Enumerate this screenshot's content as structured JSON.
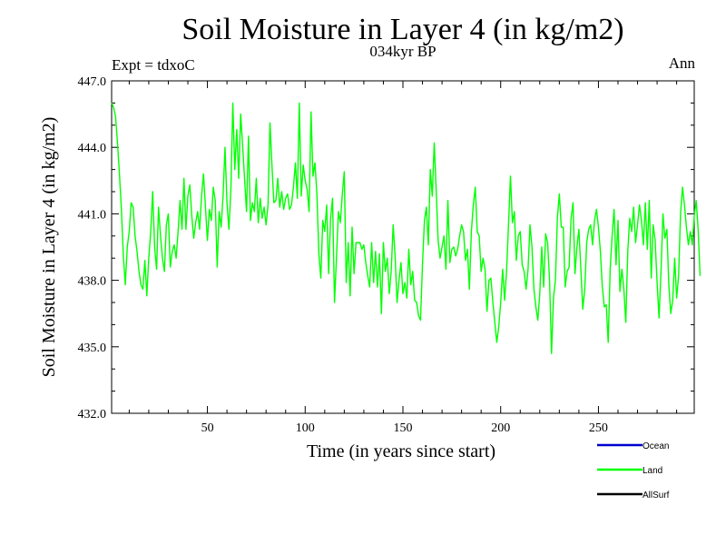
{
  "chart_data": {
    "type": "line",
    "title": "Soil Moisture in Layer 4 (in kg/m2)",
    "subtitle": "034kyr BP",
    "experiment_label": "Expt = tdxoC",
    "season_label": "Ann",
    "xlabel": "Time (in years since start)",
    "ylabel": "Soil Moisture in Layer 4 (in kg/m2)",
    "xlim": [
      1,
      299
    ],
    "ylim": [
      432.0,
      447.0
    ],
    "x_ticks": [
      50,
      100,
      150,
      200,
      250
    ],
    "x_tick_labels": [
      "50",
      "100",
      "150",
      "200",
      "250"
    ],
    "y_ticks": [
      432.0,
      435.0,
      438.0,
      441.0,
      444.0,
      447.0
    ],
    "y_tick_labels": [
      "432.0",
      "435.0",
      "438.0",
      "441.0",
      "444.0",
      "447.0"
    ],
    "legend": [
      {
        "name": "Ocean",
        "color": "#0000cc"
      },
      {
        "name": "Land",
        "color": "#00ff00"
      },
      {
        "name": "AllSurf",
        "color": "#000000"
      }
    ],
    "series": [
      {
        "name": "Land",
        "color": "#00ff00",
        "x_start": 1,
        "x_step": 1,
        "values": [
          446.0,
          445.8,
          445.4,
          444.2,
          442.8,
          441.2,
          439.1,
          437.8,
          439.5,
          440.2,
          441.5,
          441.3,
          440.0,
          439.3,
          438.4,
          437.8,
          437.6,
          438.9,
          437.3,
          439.0,
          440.2,
          442.0,
          439.5,
          438.5,
          441.3,
          440.0,
          439.0,
          438.4,
          440.5,
          441.0,
          438.6,
          439.3,
          439.6,
          439.0,
          440.2,
          441.6,
          440.3,
          442.6,
          440.3,
          441.8,
          442.3,
          440.9,
          439.9,
          440.6,
          441.1,
          440.3,
          441.8,
          442.8,
          441.3,
          439.8,
          441.2,
          440.7,
          442.2,
          441.6,
          438.6,
          441.1,
          440.4,
          441.8,
          444.0,
          441.5,
          440.3,
          442.1,
          446.0,
          443.0,
          444.8,
          442.6,
          445.5,
          444.1,
          442.6,
          441.1,
          444.5,
          440.7,
          441.5,
          441.1,
          442.6,
          440.6,
          441.7,
          440.8,
          441.3,
          440.5,
          441.4,
          445.1,
          443.2,
          441.5,
          441.6,
          442.6,
          441.3,
          442.0,
          441.2,
          441.7,
          441.9,
          441.2,
          441.4,
          442.2,
          443.3,
          441.7,
          446.0,
          441.8,
          443.2,
          442.5,
          442.1,
          441.1,
          445.6,
          442.7,
          443.3,
          441.9,
          439.2,
          438.1,
          440.7,
          440.2,
          441.4,
          438.3,
          440.8,
          441.7,
          437.0,
          439.0,
          441.1,
          440.6,
          441.9,
          442.9,
          437.9,
          439.7,
          437.3,
          440.4,
          438.3,
          439.7,
          439.7,
          439.7,
          439.4,
          439.6,
          438.8,
          438.2,
          437.7,
          439.7,
          437.9,
          439.3,
          437.7,
          439.2,
          436.5,
          439.7,
          438.4,
          439.0,
          437.4,
          438.4,
          440.5,
          439.1,
          437.0,
          438.0,
          438.8,
          437.4,
          437.9,
          437.2,
          439.4,
          437.8,
          438.4,
          437.1,
          437.0,
          436.4,
          436.2,
          438.7,
          440.7,
          441.3,
          439.6,
          443.0,
          441.8,
          444.2,
          442.1,
          439.8,
          439.0,
          439.5,
          440.0,
          438.5,
          441.6,
          438.8,
          439.4,
          439.5,
          439.1,
          439.4,
          440.0,
          440.5,
          440.2,
          438.9,
          439.4,
          437.6,
          440.2,
          441.4,
          442.2,
          440.2,
          440.0,
          438.4,
          439.0,
          438.5,
          436.6,
          438.0,
          438.1,
          437.0,
          436.1,
          435.2,
          435.9,
          437.0,
          438.5,
          437.1,
          438.4,
          440.5,
          442.7,
          440.6,
          441.1,
          438.9,
          440.0,
          440.2,
          438.7,
          438.4,
          437.6,
          438.5,
          440.5,
          439.5,
          437.6,
          436.8,
          436.2,
          437.4,
          439.5,
          437.7,
          440.1,
          439.7,
          438.0,
          434.7,
          437.2,
          438.0,
          440.8,
          441.9,
          440.4,
          440.4,
          437.7,
          438.4,
          438.6,
          440.8,
          441.5,
          438.3,
          439.5,
          440.3,
          438.5,
          436.7,
          437.6,
          439.7,
          440.3,
          440.5,
          439.6,
          440.7,
          441.2,
          440.4,
          439.3,
          437.7,
          436.8,
          436.9,
          435.2,
          438.5,
          440.0,
          441.2,
          438.7,
          440.7,
          437.5,
          438.5,
          437.6,
          436.1,
          439.3,
          440.8,
          440.2,
          441.3,
          439.7,
          440.5,
          441.4,
          440.7,
          439.6,
          441.5,
          439.4,
          441.6,
          438.1,
          440.5,
          439.8,
          437.9,
          436.3,
          438.4,
          441.0,
          439.9,
          440.3,
          437.8,
          436.5,
          437.1,
          439.0,
          437.2,
          438.2,
          441.0,
          442.2,
          441.4,
          440.4,
          439.6,
          440.2,
          439.6,
          440.9,
          441.6,
          440.3,
          438.2
        ]
      }
    ]
  }
}
